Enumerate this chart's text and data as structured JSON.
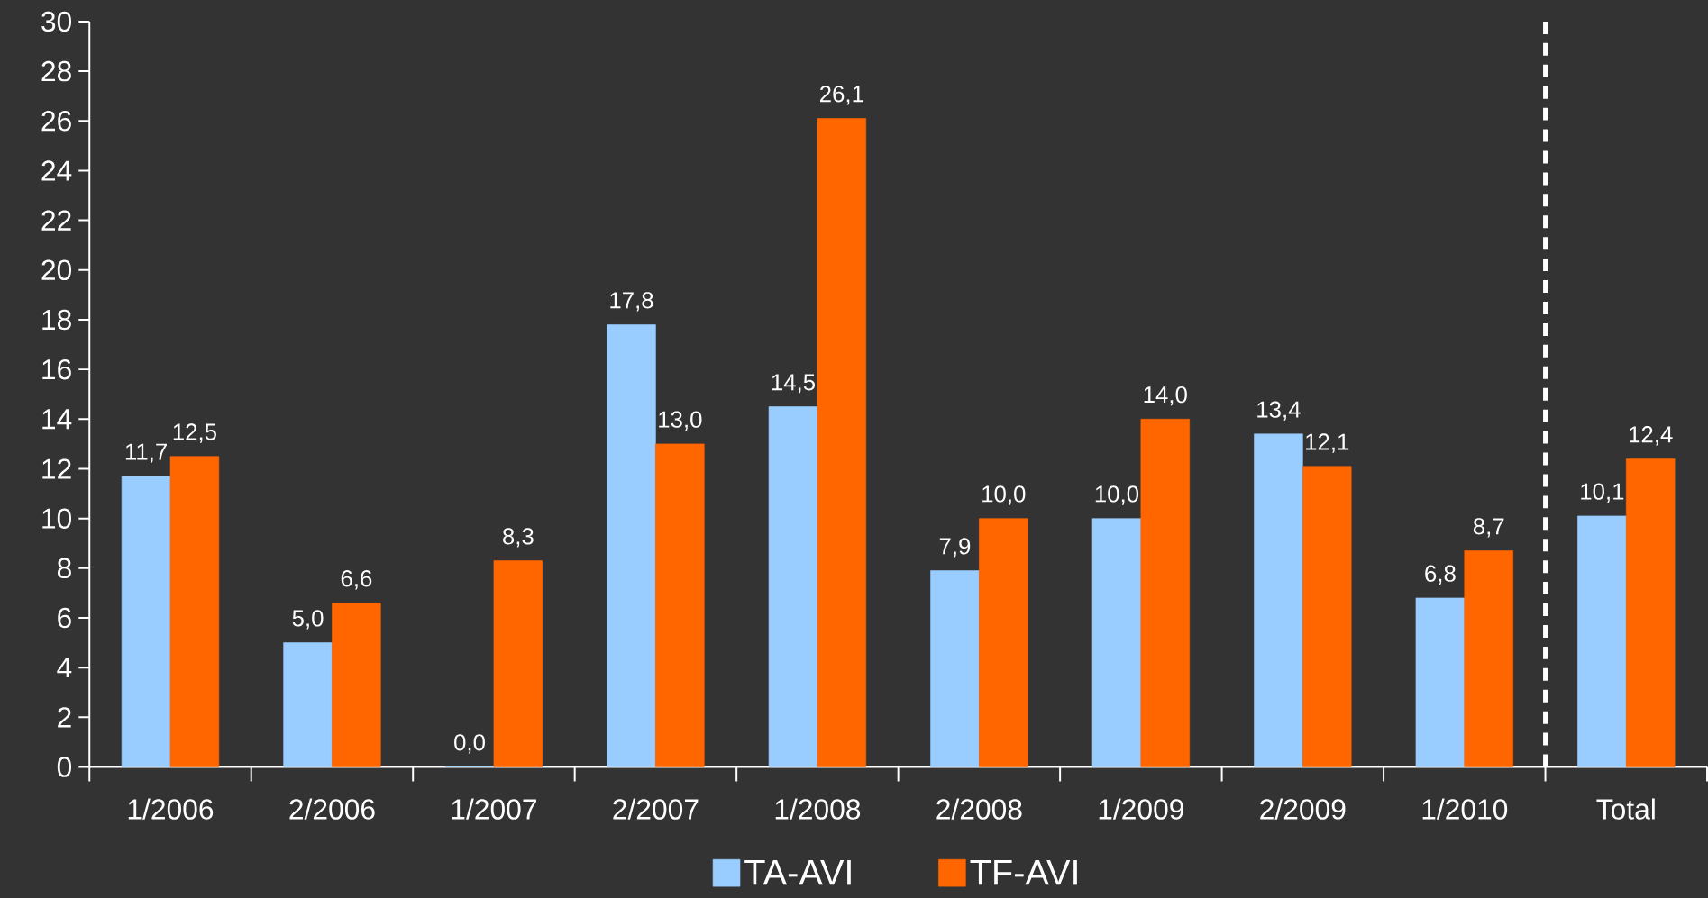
{
  "chart_data": {
    "type": "bar",
    "categories": [
      "1/2006",
      "2/2006",
      "1/2007",
      "2/2007",
      "1/2008",
      "2/2008",
      "1/2009",
      "2/2009",
      "1/2010",
      "Total"
    ],
    "series": [
      {
        "name": "TA-AVI",
        "color": "#99ccff",
        "values": [
          11.7,
          5.0,
          0.0,
          17.8,
          14.5,
          7.9,
          10.0,
          13.4,
          6.8,
          10.1
        ],
        "value_labels": [
          "11,7",
          "5,0",
          "0,0",
          "17,8",
          "14,5",
          "7,9",
          "10,0",
          "13,4",
          "6,8",
          "10,1"
        ]
      },
      {
        "name": "TF-AVI",
        "color": "#ff6600",
        "values": [
          12.5,
          6.6,
          8.3,
          13.0,
          26.1,
          10.0,
          14.0,
          12.1,
          8.7,
          12.4
        ],
        "value_labels": [
          "12,5",
          "6,6",
          "8,3",
          "13,0",
          "26,1",
          "10,0",
          "14,0",
          "12,1",
          "8,7",
          "12,4"
        ]
      }
    ],
    "ylim": [
      0,
      30
    ],
    "yticks": [
      0,
      2,
      4,
      6,
      8,
      10,
      12,
      14,
      16,
      18,
      20,
      22,
      24,
      26,
      28,
      30
    ],
    "grid": false,
    "legend": "bottom"
  }
}
